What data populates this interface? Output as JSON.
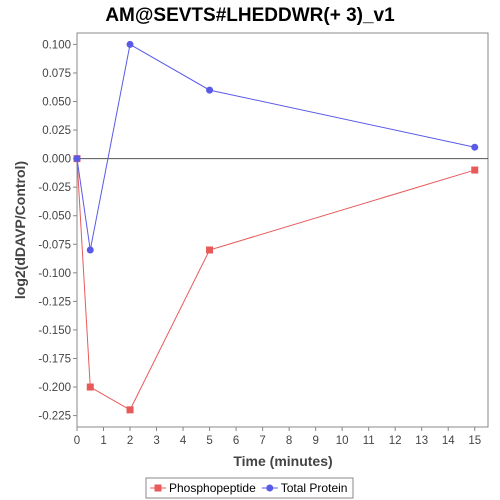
{
  "chart_data": {
    "type": "line",
    "title": "AM@SEVTS#LHEDDWR(+ 3)_v1",
    "xlabel": "Time (minutes)",
    "ylabel": "log2(dDAVP/Control)",
    "xlim": [
      0,
      15.5
    ],
    "ylim": [
      -0.235,
      0.11
    ],
    "x_ticks": [
      0,
      1,
      2,
      3,
      4,
      5,
      6,
      7,
      8,
      9,
      10,
      11,
      12,
      13,
      14,
      15
    ],
    "y_ticks": [
      0.1,
      0.075,
      0.05,
      0.025,
      0.0,
      -0.025,
      -0.05,
      -0.075,
      -0.1,
      -0.125,
      -0.15,
      -0.175,
      -0.2,
      -0.225
    ],
    "y_tick_labels": [
      "0.100",
      "0.075",
      "0.050",
      "0.025",
      "0.000",
      "-0.025",
      "-0.050",
      "-0.075",
      "-0.100",
      "-0.125",
      "-0.150",
      "-0.175",
      "-0.200",
      "-0.225"
    ],
    "x_tick_labels": [
      "0",
      "1",
      "2",
      "3",
      "4",
      "5",
      "6",
      "7",
      "8",
      "9",
      "10",
      "11",
      "12",
      "13",
      "14",
      "15"
    ],
    "zero_line": true,
    "grid": false,
    "legend_position": "bottom",
    "series": [
      {
        "name": "Phosphopeptide",
        "color": "#e8595a",
        "marker": "square",
        "x": [
          0,
          0.5,
          2,
          5,
          15
        ],
        "y": [
          0.0,
          -0.2,
          -0.22,
          -0.08,
          -0.01
        ]
      },
      {
        "name": "Total Protein",
        "color": "#5a5ae8",
        "marker": "circle",
        "x": [
          0,
          0.5,
          2,
          5,
          15
        ],
        "y": [
          0.0,
          -0.08,
          0.1,
          0.06,
          0.01
        ]
      }
    ]
  }
}
